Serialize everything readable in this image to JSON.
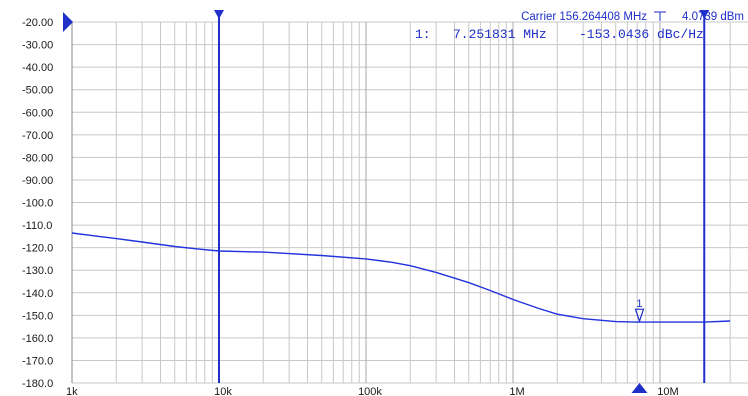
{
  "chart_data": {
    "type": "line",
    "title": "",
    "xlabel": "",
    "ylabel": "",
    "x_scale": "log",
    "xlim": [
      1000,
      30000000
    ],
    "ylim": [
      -180,
      -20
    ],
    "grid": true,
    "y_ticks": [
      "-20.00",
      "-30.00",
      "-40.00",
      "-50.00",
      "-60.00",
      "-70.00",
      "-80.00",
      "-90.00",
      "-100.0",
      "-110.0",
      "-120.0",
      "-130.0",
      "-140.0",
      "-150.0",
      "-160.0",
      "-170.0",
      "-180.0"
    ],
    "y_tick_values": [
      -20,
      -30,
      -40,
      -50,
      -60,
      -70,
      -80,
      -90,
      -100,
      -110,
      -120,
      -130,
      -140,
      -150,
      -160,
      -170,
      -180
    ],
    "x_ticks": [
      {
        "label": "1k",
        "value": 1000
      },
      {
        "label": "10k",
        "value": 10000
      },
      {
        "label": "100k",
        "value": 100000
      },
      {
        "label": "1M",
        "value": 1000000
      },
      {
        "label": "10M",
        "value": 10000000
      }
    ],
    "series": [
      {
        "color": "#2233dd",
        "x": [
          1000,
          1500,
          2000,
          3000,
          5000,
          7000,
          10000,
          20000,
          50000,
          100000,
          150000,
          200000,
          300000,
          500000,
          700000,
          1000000,
          1500000,
          2000000,
          3000000,
          5000000,
          7000000,
          10000000,
          20000000,
          30000000
        ],
        "y": [
          -113.5,
          -115,
          -116,
          -117.5,
          -119.5,
          -120.5,
          -121.5,
          -122,
          -123.5,
          -125,
          -126.5,
          -128,
          -131,
          -135.5,
          -139,
          -143,
          -147,
          -149.5,
          -151.5,
          -152.8,
          -153,
          -153,
          -153,
          -152.5
        ]
      }
    ],
    "carrier_text": "Carrier 156.264408 MHz",
    "carrier_level": "4.0739 dBm",
    "marker_readout": {
      "index": "1:",
      "frequency": "7.251831 MHz",
      "value": "-153.0436 dBc/Hz"
    },
    "markers": [
      {
        "label": "1",
        "x": 7251831,
        "y": -153.0436
      }
    ],
    "cursor_lines": [
      10000,
      20000000
    ],
    "colors": {
      "trace": "#2233dd",
      "cursor": "#1f2fc8",
      "grid": "#c8c8c8"
    }
  }
}
